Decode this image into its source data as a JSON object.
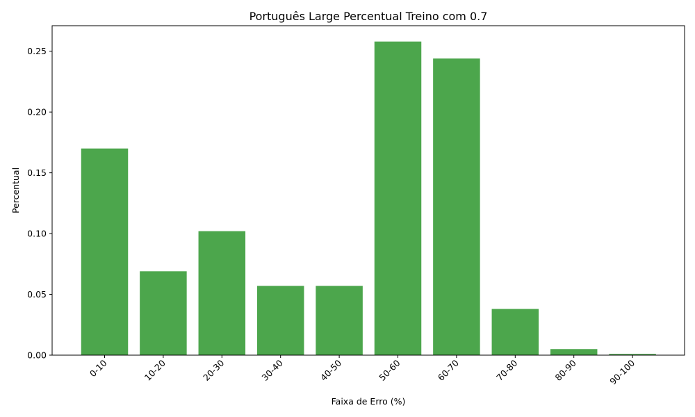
{
  "chart_data": {
    "type": "bar",
    "title": "Português Large Percentual Treino com 0.7",
    "xlabel": "Faixa de Erro (%)",
    "ylabel": "Percentual",
    "categories": [
      "0-10",
      "10-20",
      "20-30",
      "30-40",
      "40-50",
      "50-60",
      "60-70",
      "70-80",
      "80-90",
      "90-100"
    ],
    "values": [
      0.17,
      0.069,
      0.102,
      0.057,
      0.057,
      0.258,
      0.244,
      0.038,
      0.005,
      0.001
    ],
    "ylim": [
      0,
      0.271
    ],
    "yticks": [
      0.0,
      0.05,
      0.1,
      0.15,
      0.2,
      0.25
    ],
    "ytick_labels": [
      "0.00",
      "0.05",
      "0.10",
      "0.15",
      "0.20",
      "0.25"
    ],
    "bar_color": "#4ca64c",
    "grid": false,
    "xtick_rotation": 45
  }
}
